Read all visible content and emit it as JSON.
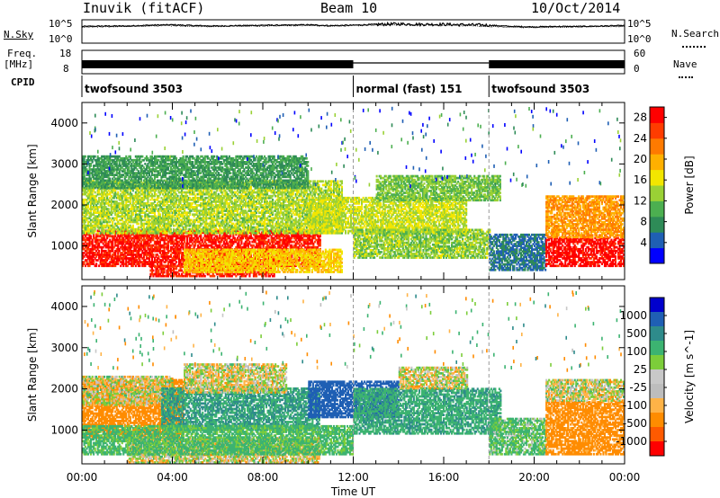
{
  "header": {
    "station": "Inuvik (fitACF)",
    "beam": "Beam 10",
    "date": "10/Oct/2014"
  },
  "side_labels": {
    "nsky": "N.Sky",
    "nsky_ticks": [
      "10^5",
      "10^0"
    ],
    "nsearch": "N.Search",
    "nsearch_ticks": [
      "10^5",
      "10^0"
    ],
    "freq": "Freq.",
    "freq_unit": "[MHz]",
    "freq_ticks": [
      "18",
      "8"
    ],
    "nave": "Nave",
    "nave_ticks": [
      "60",
      "0"
    ],
    "cpid": "CPID"
  },
  "cpid_segments": [
    {
      "label": "twofsound 3503",
      "start": 0,
      "end": 12
    },
    {
      "label": "normal (fast) 151",
      "start": 12,
      "end": 18
    },
    {
      "label": "twofsound 3503",
      "start": 18,
      "end": 24
    }
  ],
  "colors": {
    "power": [
      "#0000ff",
      "#1f5fb4",
      "#2e8b57",
      "#4caf50",
      "#9ad135",
      "#f2e600",
      "#ffb000",
      "#ff7a00",
      "#ff3c00",
      "#ff0000"
    ],
    "velocity": [
      "#ff0000",
      "#ff5a00",
      "#ff8c00",
      "#ffb347",
      "#c8c8c8",
      "#bdbdbd",
      "#7ccd3a",
      "#3cb371",
      "#2e8b8b",
      "#1f5fb4",
      "#0000cd"
    ]
  },
  "chart_data": [
    {
      "type": "line",
      "title": "N.Sky / N.Search",
      "x": [
        0,
        1,
        2,
        3,
        4,
        5,
        6,
        7,
        8,
        9,
        10,
        11,
        12,
        13,
        14,
        15,
        16,
        17,
        18,
        19,
        20,
        21,
        22,
        23,
        24
      ],
      "series": [
        {
          "name": "N.Sky",
          "values": [
            3.6,
            3.7,
            3.7,
            3.9,
            4.0,
            3.8,
            3.7,
            3.8,
            3.9,
            3.9,
            4.0,
            3.8,
            3.9,
            4.1,
            4.2,
            4.1,
            4.1,
            4.0,
            3.9,
            3.6,
            3.5,
            3.6,
            3.6,
            3.7,
            3.8
          ]
        },
        {
          "name": "N.Search",
          "values": [
            3.4,
            3.5,
            3.6,
            3.7,
            3.8,
            3.6,
            3.6,
            3.7,
            3.7,
            3.8,
            3.8,
            3.7,
            3.8,
            3.9,
            4.0,
            4.0,
            3.9,
            3.8,
            3.6,
            3.4,
            3.3,
            3.4,
            3.5,
            3.6,
            3.6
          ]
        }
      ],
      "ylim": [
        0,
        5
      ],
      "yscale": "log"
    },
    {
      "type": "line",
      "title": "Freq. / Nave",
      "x": [
        0,
        12,
        18,
        24
      ],
      "series": [
        {
          "name": "Freq. [MHz]",
          "values": [
            10.5,
            10.5,
            10.5,
            10.5
          ]
        },
        {
          "name": "Nave",
          "values": [
            25,
            10,
            25,
            25
          ]
        }
      ]
    },
    {
      "type": "heatmap",
      "title": "Power",
      "xlabel": "",
      "ylabel": "Slant Range [km]",
      "xlim": [
        0,
        24
      ],
      "ylim": [
        180,
        4500
      ],
      "x_ticks": [
        "00:00",
        "04:00",
        "08:00",
        "12:00",
        "16:00",
        "20:00",
        "00:00"
      ],
      "y_ticks": [
        1000,
        2000,
        3000,
        4000
      ],
      "colorbar": {
        "label": "Power [dB]",
        "ticks": [
          4,
          8,
          12,
          16,
          20,
          24,
          28
        ],
        "range": [
          0,
          30
        ]
      },
      "regions": [
        {
          "t0": 0,
          "t1": 10.5,
          "r0": 500,
          "r1": 1400,
          "value": 28
        },
        {
          "t0": 0,
          "t1": 11.5,
          "r0": 1300,
          "r1": 2600,
          "value": 14
        },
        {
          "t0": 3,
          "t1": 8.5,
          "r0": 250,
          "r1": 500,
          "value": 27
        },
        {
          "t0": 4.5,
          "t1": 11.5,
          "r0": 350,
          "r1": 900,
          "value": 18
        },
        {
          "t0": 0,
          "t1": 10,
          "r0": 2400,
          "r1": 3200,
          "value": 9
        },
        {
          "t0": 10,
          "t1": 17,
          "r0": 1300,
          "r1": 2200,
          "value": 15
        },
        {
          "t0": 12,
          "t1": 18,
          "r0": 700,
          "r1": 1400,
          "value": 13
        },
        {
          "t0": 13,
          "t1": 18.5,
          "r0": 2100,
          "r1": 2700,
          "value": 12
        },
        {
          "t0": 18,
          "t1": 20.5,
          "r0": 400,
          "r1": 1300,
          "value": 6
        },
        {
          "t0": 20.5,
          "t1": 24,
          "r0": 500,
          "r1": 1200,
          "value": 29
        },
        {
          "t0": 20.5,
          "t1": 24,
          "r0": 1200,
          "r1": 2200,
          "value": 21
        }
      ]
    },
    {
      "type": "heatmap",
      "title": "Velocity",
      "xlabel": "Time UT",
      "ylabel": "Slant Range [km]",
      "xlim": [
        0,
        24
      ],
      "ylim": [
        180,
        4500
      ],
      "x_ticks": [
        "00:00",
        "04:00",
        "08:00",
        "12:00",
        "16:00",
        "20:00",
        "00:00"
      ],
      "y_ticks": [
        1000,
        2000,
        3000,
        4000
      ],
      "colorbar": {
        "label": "Velocity [m s^-1]",
        "ticks": [
          "1000",
          "500",
          "100",
          "25",
          "-25",
          "-100",
          "-500",
          "-1000"
        ]
      },
      "regions": [
        {
          "t0": 0,
          "t1": 4.5,
          "r0": 800,
          "r1": 2200,
          "value": -300
        },
        {
          "t0": 0,
          "t1": 4,
          "r0": 1600,
          "r1": 2300,
          "value": 0
        },
        {
          "t0": 3.5,
          "t1": 10.5,
          "r0": 1000,
          "r1": 2000,
          "value": 300
        },
        {
          "t0": 4.5,
          "t1": 9,
          "r0": 1900,
          "r1": 2600,
          "value": 0
        },
        {
          "t0": 2,
          "t1": 10.5,
          "r0": 200,
          "r1": 800,
          "value": 0
        },
        {
          "t0": 0,
          "t1": 12,
          "r0": 400,
          "r1": 1100,
          "value": 150
        },
        {
          "t0": 10,
          "t1": 14,
          "r0": 1300,
          "r1": 2200,
          "value": 700
        },
        {
          "t0": 12,
          "t1": 18.5,
          "r0": 900,
          "r1": 2000,
          "value": 250
        },
        {
          "t0": 14,
          "t1": 17,
          "r0": 2000,
          "r1": 2500,
          "value": 0
        },
        {
          "t0": 18,
          "t1": 20.5,
          "r0": 400,
          "r1": 1300,
          "value": 120
        },
        {
          "t0": 20.5,
          "t1": 24,
          "r0": 400,
          "r1": 1700,
          "value": -200
        },
        {
          "t0": 20.5,
          "t1": 24,
          "r0": 1700,
          "r1": 2200,
          "value": 0
        }
      ]
    }
  ]
}
